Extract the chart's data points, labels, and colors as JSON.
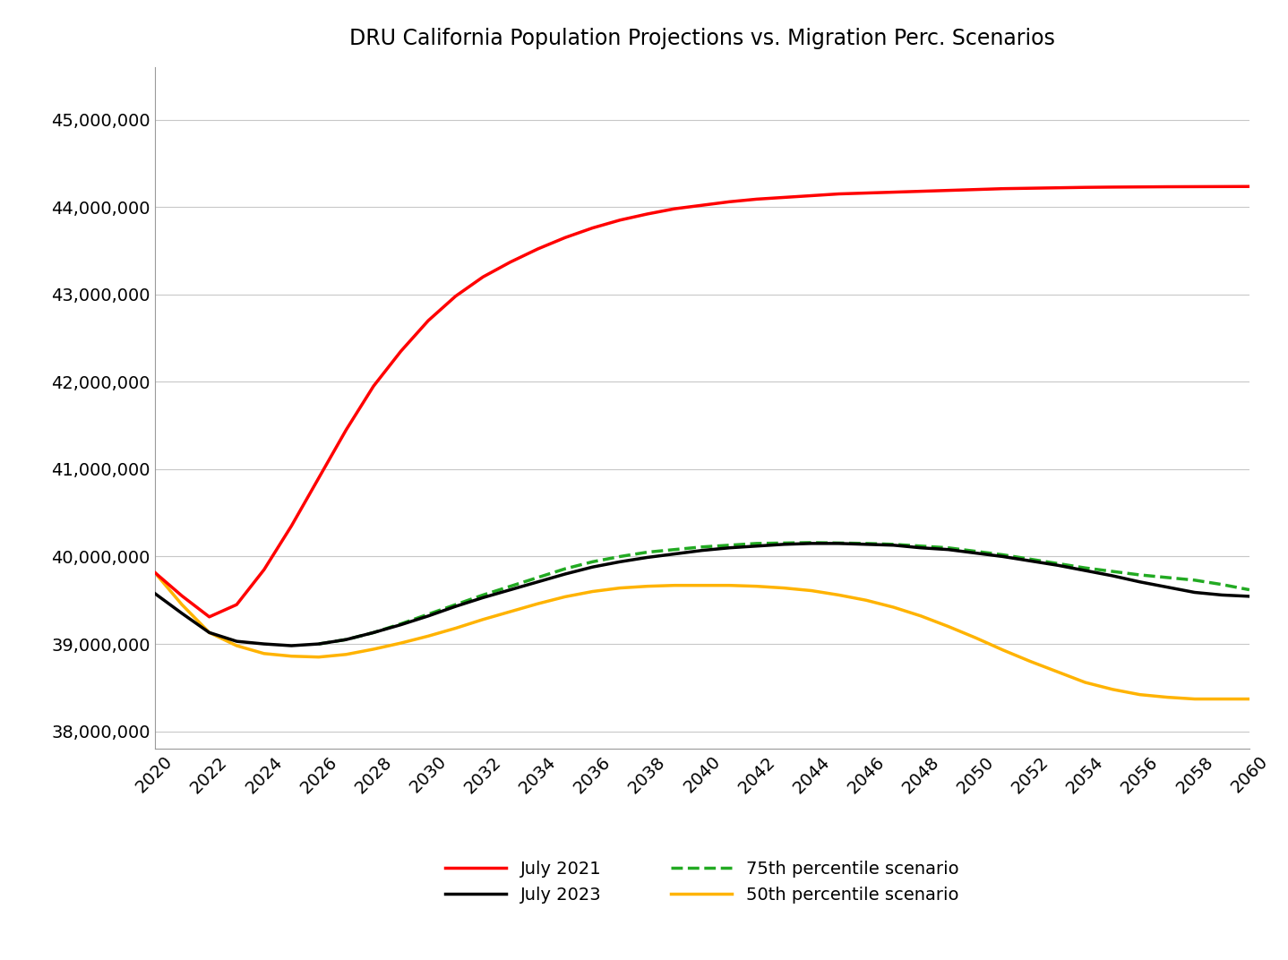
{
  "title": "DRU California Population Projections vs. Migration Perc. Scenarios",
  "years": [
    2020,
    2021,
    2022,
    2023,
    2024,
    2025,
    2026,
    2027,
    2028,
    2029,
    2030,
    2031,
    2032,
    2033,
    2034,
    2035,
    2036,
    2037,
    2038,
    2039,
    2040,
    2041,
    2042,
    2043,
    2044,
    2045,
    2046,
    2047,
    2048,
    2049,
    2050,
    2051,
    2052,
    2053,
    2054,
    2055,
    2056,
    2057,
    2058,
    2059,
    2060
  ],
  "july2021": [
    39820000,
    39550000,
    39310000,
    39450000,
    39850000,
    40350000,
    40900000,
    41450000,
    41950000,
    42350000,
    42700000,
    42980000,
    43200000,
    43370000,
    43520000,
    43650000,
    43760000,
    43850000,
    43920000,
    43980000,
    44020000,
    44060000,
    44090000,
    44110000,
    44130000,
    44150000,
    44160000,
    44170000,
    44180000,
    44190000,
    44200000,
    44210000,
    44215000,
    44220000,
    44225000,
    44228000,
    44230000,
    44232000,
    44233000,
    44234000,
    44235000
  ],
  "july2023": [
    39580000,
    39350000,
    39130000,
    39030000,
    39000000,
    38980000,
    39000000,
    39050000,
    39130000,
    39220000,
    39320000,
    39430000,
    39530000,
    39620000,
    39710000,
    39800000,
    39880000,
    39940000,
    39990000,
    40030000,
    40070000,
    40100000,
    40120000,
    40140000,
    40150000,
    40150000,
    40140000,
    40130000,
    40100000,
    40080000,
    40040000,
    40000000,
    39950000,
    39900000,
    39840000,
    39780000,
    39710000,
    39650000,
    39590000,
    39560000,
    39545000
  ],
  "p75": [
    null,
    null,
    null,
    null,
    null,
    null,
    39000000,
    39050000,
    39130000,
    39230000,
    39340000,
    39450000,
    39560000,
    39660000,
    39760000,
    39860000,
    39940000,
    40000000,
    40050000,
    40080000,
    40110000,
    40130000,
    40150000,
    40155000,
    40160000,
    40155000,
    40150000,
    40140000,
    40120000,
    40100000,
    40060000,
    40020000,
    39970000,
    39920000,
    39870000,
    39830000,
    39790000,
    39760000,
    39730000,
    39680000,
    39620000
  ],
  "p50": [
    39820000,
    39450000,
    39130000,
    38980000,
    38890000,
    38860000,
    38850000,
    38880000,
    38940000,
    39010000,
    39090000,
    39180000,
    39280000,
    39370000,
    39460000,
    39540000,
    39600000,
    39640000,
    39660000,
    39670000,
    39670000,
    39670000,
    39660000,
    39640000,
    39610000,
    39560000,
    39500000,
    39420000,
    39320000,
    39200000,
    39070000,
    38930000,
    38800000,
    38680000,
    38560000,
    38480000,
    38420000,
    38390000,
    38370000,
    38370000,
    38370000
  ],
  "july2021_color": "#FF0000",
  "july2023_color": "#000000",
  "p75_color": "#22AA22",
  "p50_color": "#FFB300",
  "background_color": "#FFFFFF",
  "grid_color": "#C8C8C8",
  "ylim_min": 37800000,
  "ylim_max": 45600000,
  "yticks": [
    38000000,
    39000000,
    40000000,
    41000000,
    42000000,
    43000000,
    44000000,
    45000000
  ],
  "xticks": [
    2020,
    2022,
    2024,
    2026,
    2028,
    2030,
    2032,
    2034,
    2036,
    2038,
    2040,
    2042,
    2044,
    2046,
    2048,
    2050,
    2052,
    2054,
    2056,
    2058,
    2060
  ],
  "legend": [
    {
      "label": "July 2021",
      "color": "#FF0000",
      "linestyle": "solid",
      "linewidth": 2.5
    },
    {
      "label": "July 2023",
      "color": "#000000",
      "linestyle": "solid",
      "linewidth": 2.5
    },
    {
      "label": "75th percentile scenario",
      "color": "#22AA22",
      "linestyle": "dashed",
      "linewidth": 2.5
    },
    {
      "label": "50th percentile scenario",
      "color": "#FFB300",
      "linestyle": "solid",
      "linewidth": 2.5
    }
  ]
}
